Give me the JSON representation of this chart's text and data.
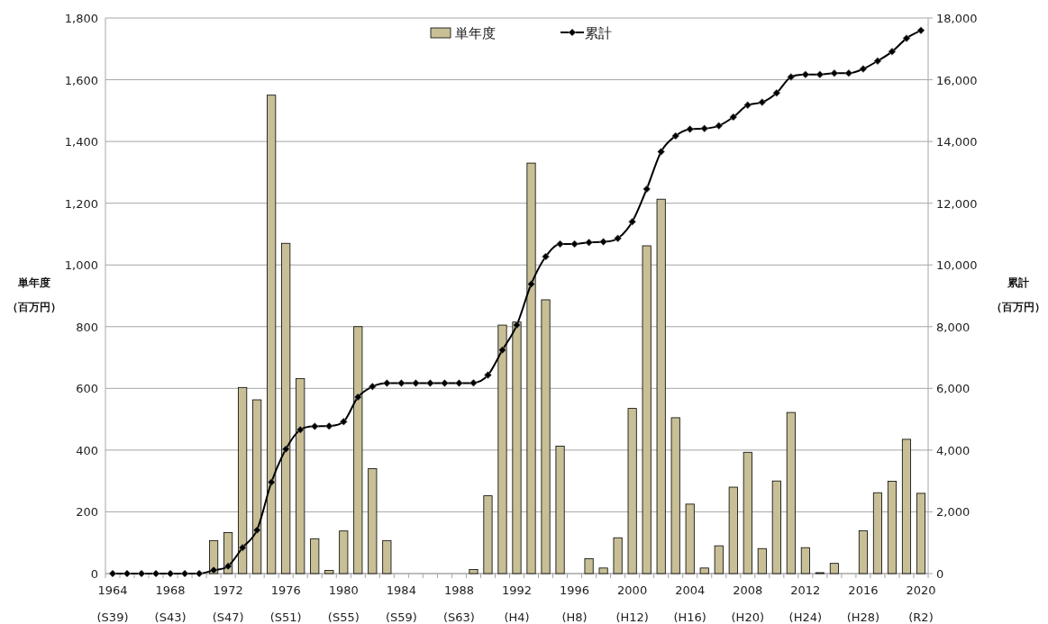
{
  "chart_data": {
    "type": "bar",
    "ylabel": "単年度（百万円）",
    "y2label": "累計（百万円）",
    "categories": [
      "1964 (S39)",
      null,
      null,
      null,
      "1968 (S43)",
      null,
      null,
      null,
      "1972 (S47)",
      null,
      null,
      null,
      "1976 (S51)",
      null,
      null,
      null,
      "1980 (S55)",
      null,
      null,
      null,
      "1984 (S59)",
      null,
      null,
      null,
      "1988 (S63)",
      null,
      null,
      null,
      "1992 (H4)",
      null,
      null,
      null,
      "1996 (H8)",
      null,
      null,
      null,
      "2000 (H12)",
      null,
      null,
      null,
      "2004 (H16)",
      null,
      null,
      null,
      "2008 (H20)",
      null,
      null,
      null,
      "2012 (H24)",
      null,
      null,
      null,
      "2016 (H28)",
      null,
      null,
      null,
      "2020 (R2)"
    ],
    "ylim": [
      0,
      1800
    ],
    "yticks": [
      0,
      {
        "value": 200,
        "label": "200"
      },
      {
        "value": 400,
        "label": "400"
      },
      {
        "value": 600,
        "label": "600"
      },
      {
        "value": 800,
        "label": "800"
      },
      {
        "value": 1000,
        "label": "1,000"
      },
      {
        "value": 1200,
        "label": "1,200"
      },
      {
        "value": 1400,
        "label": "1,400"
      },
      {
        "value": 1600,
        "label": "1,600"
      },
      {
        "value": 1800,
        "label": "1,800"
      }
    ],
    "y2lim": [
      0,
      18000
    ],
    "y2ticks": [
      0,
      {
        "value": 2000,
        "label": "2,000"
      },
      {
        "value": 4000,
        "label": "4,000"
      },
      {
        "value": 6000,
        "label": "6,000"
      },
      {
        "value": 8000,
        "label": "8,000"
      },
      {
        "value": 10000,
        "label": "10,000"
      },
      {
        "value": 12000,
        "label": "12,000"
      },
      {
        "value": 14000,
        "label": "14,000"
      },
      {
        "value": 16000,
        "label": "16,000"
      },
      {
        "value": 18000,
        "label": "18,000"
      }
    ],
    "grid": "y",
    "legend": "top",
    "marker": "diamond",
    "series": [
      {
        "name": "単年度",
        "color": "#c8bf96",
        "values": [
          0,
          0,
          0,
          0,
          0,
          0,
          0,
          107,
          133,
          603,
          563,
          1550,
          1070,
          632,
          113,
          10,
          138,
          800,
          340,
          107,
          0,
          0,
          0,
          0,
          0,
          13,
          252,
          805,
          815,
          1330,
          887,
          413,
          0,
          48,
          18,
          116,
          535,
          1062,
          1213,
          505,
          225,
          18,
          90,
          280,
          393,
          81,
          300,
          522,
          84,
          3,
          33,
          0,
          139,
          262,
          299,
          435,
          260
        ]
      },
      {
        "name": "累計",
        "type": "line",
        "axis": "y2",
        "color": "#000000",
        "values": [
          0,
          0,
          0,
          0,
          0,
          0,
          0,
          110,
          240,
          840,
          1410,
          2960,
          4030,
          4660,
          4770,
          4780,
          4920,
          5720,
          6060,
          6170,
          6170,
          6170,
          6170,
          6170,
          6170,
          6180,
          6430,
          7240,
          8050,
          9380,
          10270,
          10680,
          10680,
          10730,
          10750,
          10860,
          11400,
          12460,
          13670,
          14180,
          14400,
          14420,
          14510,
          14790,
          15180,
          15270,
          15570,
          16090,
          16170,
          16170,
          16210,
          16210,
          16350,
          16610,
          16910,
          17340,
          17600
        ]
      }
    ]
  }
}
